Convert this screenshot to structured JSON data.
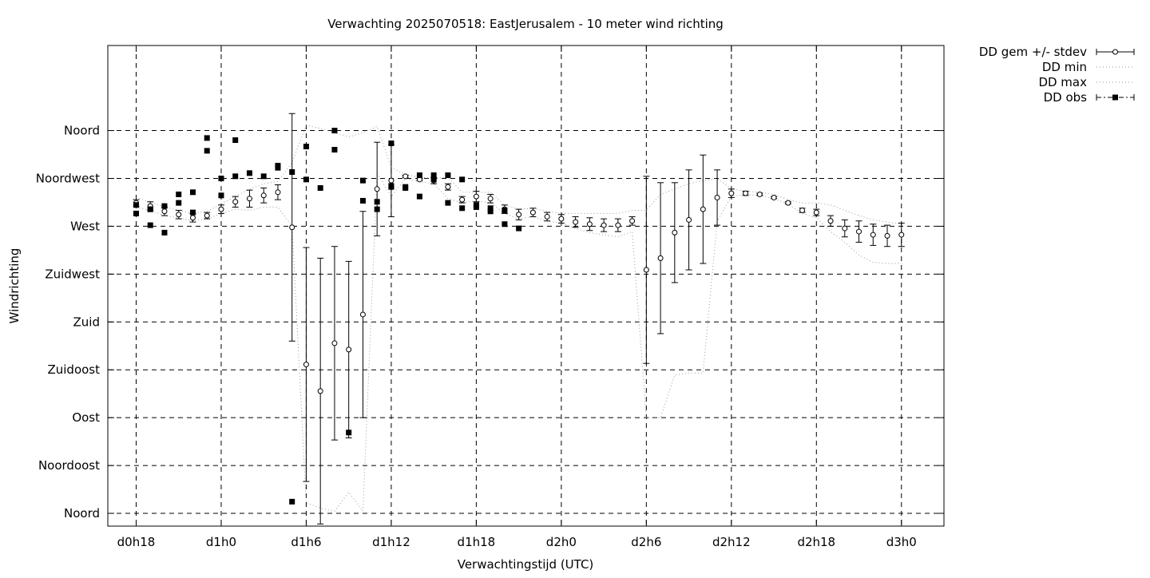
{
  "chart_data": {
    "type": "scatter",
    "title": "Verwachting 2025070518: EastJerusalem - 10 meter wind richting",
    "xlabel": "Verwachtingstijd (UTC)",
    "ylabel": "Windrichting",
    "x_unit": "hours since d0h0",
    "xlim": [
      16,
      75
    ],
    "ylim": [
      -12,
      440
    ],
    "x_ticks": [
      {
        "value": 18,
        "label": "d0h18"
      },
      {
        "value": 24,
        "label": "d1h0"
      },
      {
        "value": 30,
        "label": "d1h6"
      },
      {
        "value": 36,
        "label": "d1h12"
      },
      {
        "value": 42,
        "label": "d1h18"
      },
      {
        "value": 48,
        "label": "d2h0"
      },
      {
        "value": 54,
        "label": "d2h6"
      },
      {
        "value": 60,
        "label": "d2h12"
      },
      {
        "value": 66,
        "label": "d2h18"
      },
      {
        "value": 72,
        "label": "d3h0"
      }
    ],
    "y_ticks": [
      {
        "value": 0,
        "label": "Noord"
      },
      {
        "value": 45,
        "label": "Noordoost"
      },
      {
        "value": 90,
        "label": "Oost"
      },
      {
        "value": 135,
        "label": "Zuidoost"
      },
      {
        "value": 180,
        "label": "Zuid"
      },
      {
        "value": 225,
        "label": "Zuidwest"
      },
      {
        "value": 270,
        "label": "West"
      },
      {
        "value": 315,
        "label": "Noordwest"
      },
      {
        "value": 360,
        "label": "Noord"
      }
    ],
    "grid": true,
    "legend_position": "outside-top-right",
    "series": [
      {
        "name": "DD gem +/- stdev",
        "style": "errorbar",
        "x": [
          18,
          19,
          20,
          21,
          22,
          23,
          24,
          25,
          26,
          27,
          28,
          29,
          30,
          31,
          32,
          33,
          34,
          35,
          36,
          37,
          38,
          39,
          40,
          41,
          42,
          43,
          44,
          45,
          46,
          47,
          48,
          49,
          50,
          51,
          52,
          53,
          54,
          55,
          56,
          57,
          58,
          59,
          60,
          61,
          62,
          63,
          64,
          65,
          66,
          67,
          68,
          69,
          70,
          71,
          72
        ],
        "y": [
          292,
          289,
          284,
          281,
          278,
          280,
          286,
          293,
          296,
          299,
          302,
          269,
          140,
          115,
          160,
          154,
          187,
          305,
          313,
          317,
          314,
          313,
          307,
          295,
          298,
          296,
          286,
          281,
          283,
          279,
          277,
          274,
          272,
          271,
          271,
          275,
          229,
          240,
          264,
          276,
          286,
          297,
          301,
          301,
          300,
          297,
          292,
          285,
          283,
          275,
          268,
          265,
          262,
          261,
          262
        ],
        "stdev": [
          3,
          4,
          4,
          4,
          4,
          3,
          4,
          5,
          8,
          7,
          7,
          107,
          110,
          125,
          91,
          83,
          97,
          44,
          34,
          1,
          1,
          3,
          3,
          3,
          5,
          4,
          4,
          5,
          4,
          4,
          4,
          5,
          6,
          6,
          6,
          4,
          88,
          71,
          47,
          47,
          51,
          26,
          4,
          2,
          1,
          1,
          1,
          2,
          3,
          5,
          8,
          10,
          10,
          10,
          11
        ]
      },
      {
        "name": "DD min",
        "style": "dotted",
        "x": [
          18,
          19,
          20,
          21,
          22,
          23,
          24,
          25,
          26,
          27,
          28,
          29,
          30,
          31,
          32,
          33,
          34,
          35,
          36,
          37,
          38,
          39,
          40,
          41,
          42,
          43,
          44,
          45,
          46,
          47,
          48,
          49,
          50,
          51,
          52,
          53,
          54,
          55,
          56,
          57,
          58,
          59,
          60,
          61,
          62,
          63,
          64,
          65,
          66,
          67,
          68,
          69,
          70,
          71,
          72
        ],
        "y": [
          288,
          285,
          280,
          278,
          275,
          277,
          282,
          286,
          285,
          288,
          288,
          270,
          10,
          5,
          2,
          20,
          2,
          320,
          298,
          315,
          312,
          310,
          296,
          292,
          294,
          292,
          282,
          277,
          279,
          275,
          273,
          268,
          264,
          262,
          260,
          265,
          90,
          90,
          130,
          132,
          132,
          275,
          298,
          300,
          299,
          296,
          291,
          282,
          278,
          265,
          255,
          243,
          236,
          235,
          235
        ]
      },
      {
        "name": "DD max",
        "style": "dotted",
        "x": [
          18,
          19,
          20,
          21,
          22,
          23,
          24,
          25,
          26,
          27,
          28,
          29,
          30,
          31,
          32,
          33,
          34,
          35,
          36,
          37,
          38,
          39,
          40,
          41,
          42,
          43,
          44,
          45,
          46,
          47,
          48,
          49,
          50,
          51,
          52,
          53,
          54,
          55,
          56,
          57,
          58,
          59,
          60,
          61,
          62,
          63,
          64,
          65,
          66,
          67,
          68,
          69,
          70,
          71,
          72
        ],
        "y": [
          297,
          293,
          288,
          285,
          282,
          284,
          291,
          298,
          305,
          310,
          312,
          330,
          365,
          362,
          358,
          354,
          358,
          364,
          325,
          319,
          316,
          315,
          316,
          302,
          302,
          302,
          290,
          286,
          287,
          284,
          282,
          282,
          282,
          282,
          282,
          285,
          285,
          300,
          305,
          310,
          313,
          315,
          305,
          303,
          302,
          300,
          295,
          292,
          292,
          290,
          285,
          280,
          276,
          274,
          272
        ]
      },
      {
        "name": "DD obs",
        "style": "markers",
        "x": [
          18,
          18,
          19,
          19,
          19,
          20,
          20,
          21,
          21,
          22,
          22,
          23,
          23,
          24,
          24,
          25,
          25,
          26,
          27,
          28,
          28,
          29,
          29,
          30,
          30,
          31,
          32,
          32,
          33,
          34,
          34,
          35,
          35,
          36,
          36,
          36,
          37,
          37,
          38,
          38,
          39,
          39,
          40,
          40,
          41,
          41,
          42,
          42,
          43,
          43,
          44,
          44,
          45
        ],
        "y": [
          282,
          290,
          271,
          286,
          286,
          264,
          289,
          292,
          300,
          283,
          302,
          353,
          341,
          299,
          315,
          351,
          317,
          320,
          317,
          327,
          325,
          321,
          11,
          314,
          345,
          306,
          342,
          360,
          76,
          294,
          313,
          293,
          286,
          348,
          307,
          308,
          306,
          307,
          318,
          298,
          314,
          318,
          318,
          292,
          314,
          287,
          288,
          290,
          284,
          287,
          285,
          272,
          268
        ]
      }
    ]
  }
}
